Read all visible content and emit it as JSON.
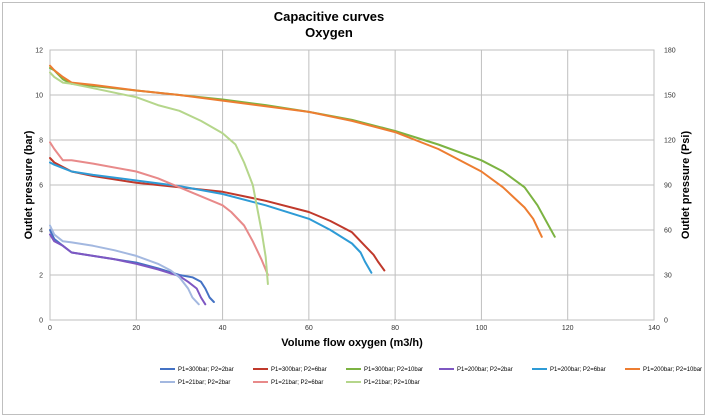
{
  "chart_data": {
    "type": "line",
    "title": "Capacitive curves",
    "subtitle": "Oxygen",
    "xlabel": "Volume flow oxygen (m3/h)",
    "ylabel": "Outlet pressure (bar)",
    "y2label": "Outlet pressure (Psi)",
    "xlim": [
      0,
      140
    ],
    "ylim": [
      0,
      12
    ],
    "y2lim": [
      0,
      180
    ],
    "x_ticks": [
      "0",
      "20",
      "40",
      "60",
      "80",
      "100",
      "120",
      "140"
    ],
    "y_ticks": [
      "0",
      "2",
      "4",
      "6",
      "8",
      "10",
      "12"
    ],
    "y2_ticks": [
      "0",
      "30",
      "60",
      "90",
      "120",
      "150",
      "180"
    ],
    "grid": true,
    "legend_position": "bottom",
    "series": [
      {
        "name": "P1=300bar; P2=2bar",
        "color": "#4472c4",
        "points": [
          [
            0,
            4.0
          ],
          [
            1,
            3.6
          ],
          [
            3,
            3.3
          ],
          [
            5,
            3.0
          ],
          [
            10,
            2.85
          ],
          [
            15,
            2.7
          ],
          [
            20,
            2.55
          ],
          [
            25,
            2.3
          ],
          [
            30,
            2.0
          ],
          [
            33,
            1.9
          ],
          [
            35,
            1.7
          ],
          [
            36,
            1.4
          ],
          [
            37,
            1.0
          ],
          [
            38,
            0.8
          ]
        ]
      },
      {
        "name": "P1=300bar; P2=6bar",
        "color": "#c0392b",
        "points": [
          [
            0,
            7.2
          ],
          [
            1,
            7.0
          ],
          [
            3,
            6.8
          ],
          [
            5,
            6.6
          ],
          [
            10,
            6.4
          ],
          [
            20,
            6.1
          ],
          [
            30,
            5.9
          ],
          [
            40,
            5.7
          ],
          [
            50,
            5.3
          ],
          [
            60,
            4.8
          ],
          [
            65,
            4.4
          ],
          [
            70,
            3.9
          ],
          [
            73,
            3.3
          ],
          [
            75,
            2.9
          ],
          [
            76,
            2.6
          ],
          [
            77.5,
            2.2
          ]
        ]
      },
      {
        "name": "P1=300bar; P2=10bar",
        "color": "#7cb342",
        "points": [
          [
            0,
            11.2
          ],
          [
            1,
            11.1
          ],
          [
            3,
            10.7
          ],
          [
            5,
            10.5
          ],
          [
            10,
            10.4
          ],
          [
            20,
            10.2
          ],
          [
            30,
            10.0
          ],
          [
            40,
            9.8
          ],
          [
            50,
            9.55
          ],
          [
            60,
            9.25
          ],
          [
            70,
            8.9
          ],
          [
            80,
            8.4
          ],
          [
            90,
            7.8
          ],
          [
            100,
            7.1
          ],
          [
            105,
            6.6
          ],
          [
            110,
            5.9
          ],
          [
            113,
            5.1
          ],
          [
            115,
            4.4
          ],
          [
            117,
            3.7
          ]
        ]
      },
      {
        "name": "P1=200bar; P2=2bar",
        "color": "#7e57c2",
        "points": [
          [
            0,
            3.8
          ],
          [
            1,
            3.5
          ],
          [
            3,
            3.3
          ],
          [
            5,
            3.0
          ],
          [
            10,
            2.85
          ],
          [
            15,
            2.7
          ],
          [
            20,
            2.5
          ],
          [
            25,
            2.25
          ],
          [
            30,
            1.95
          ],
          [
            32,
            1.7
          ],
          [
            34,
            1.4
          ],
          [
            35,
            1.0
          ],
          [
            36,
            0.7
          ]
        ]
      },
      {
        "name": "P1=200bar; P2=6bar",
        "color": "#2e9bd6",
        "points": [
          [
            0,
            7.0
          ],
          [
            1,
            6.9
          ],
          [
            3,
            6.75
          ],
          [
            5,
            6.6
          ],
          [
            10,
            6.45
          ],
          [
            20,
            6.2
          ],
          [
            30,
            5.95
          ],
          [
            40,
            5.6
          ],
          [
            50,
            5.1
          ],
          [
            60,
            4.5
          ],
          [
            65,
            4.0
          ],
          [
            70,
            3.4
          ],
          [
            72,
            3.0
          ],
          [
            73,
            2.6
          ],
          [
            74.5,
            2.1
          ]
        ]
      },
      {
        "name": "P1=200bar; P2=10bar",
        "color": "#ed7d31",
        "points": [
          [
            0,
            11.3
          ],
          [
            1,
            11.1
          ],
          [
            3,
            10.8
          ],
          [
            5,
            10.55
          ],
          [
            10,
            10.45
          ],
          [
            20,
            10.2
          ],
          [
            30,
            10.0
          ],
          [
            40,
            9.75
          ],
          [
            50,
            9.5
          ],
          [
            60,
            9.25
          ],
          [
            70,
            8.85
          ],
          [
            80,
            8.35
          ],
          [
            90,
            7.6
          ],
          [
            100,
            6.6
          ],
          [
            105,
            5.9
          ],
          [
            110,
            5.0
          ],
          [
            112,
            4.5
          ],
          [
            113,
            4.1
          ],
          [
            114,
            3.7
          ]
        ]
      },
      {
        "name": "P1=21bar; P2=2bar",
        "color": "#a3b8e0",
        "points": [
          [
            0,
            4.2
          ],
          [
            1,
            3.8
          ],
          [
            3,
            3.5
          ],
          [
            5,
            3.45
          ],
          [
            10,
            3.3
          ],
          [
            15,
            3.1
          ],
          [
            20,
            2.85
          ],
          [
            25,
            2.5
          ],
          [
            28,
            2.2
          ],
          [
            30,
            1.9
          ],
          [
            32,
            1.4
          ],
          [
            33,
            1.0
          ],
          [
            34.5,
            0.7
          ]
        ]
      },
      {
        "name": "P1=21bar; P2=6bar",
        "color": "#e88a8a",
        "points": [
          [
            0,
            7.9
          ],
          [
            1,
            7.6
          ],
          [
            3,
            7.1
          ],
          [
            5,
            7.1
          ],
          [
            10,
            6.95
          ],
          [
            20,
            6.6
          ],
          [
            25,
            6.3
          ],
          [
            30,
            5.9
          ],
          [
            35,
            5.5
          ],
          [
            40,
            5.1
          ],
          [
            42,
            4.8
          ],
          [
            45,
            4.2
          ],
          [
            47,
            3.5
          ],
          [
            49,
            2.7
          ],
          [
            50.5,
            2.0
          ]
        ]
      },
      {
        "name": "P1=21bar; P2=10bar",
        "color": "#b5d68b",
        "points": [
          [
            0,
            11.0
          ],
          [
            1,
            10.8
          ],
          [
            3,
            10.55
          ],
          [
            5,
            10.5
          ],
          [
            10,
            10.3
          ],
          [
            20,
            9.9
          ],
          [
            25,
            9.55
          ],
          [
            30,
            9.3
          ],
          [
            35,
            8.85
          ],
          [
            40,
            8.3
          ],
          [
            43,
            7.8
          ],
          [
            45,
            7.0
          ],
          [
            47,
            6.0
          ],
          [
            48,
            5.0
          ],
          [
            49,
            4.0
          ],
          [
            50,
            2.8
          ],
          [
            50.5,
            1.6
          ]
        ]
      }
    ]
  }
}
